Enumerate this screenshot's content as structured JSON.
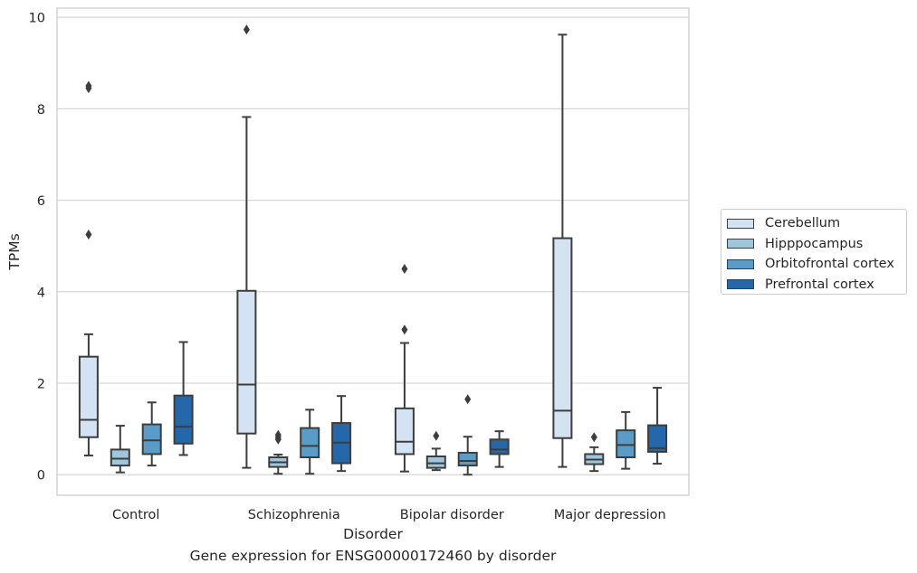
{
  "caption": "Gene expression for ENSG00000172460 by disorder",
  "chart_data": {
    "type": "boxplot",
    "xlabel": "Disorder",
    "ylabel": "TPMs",
    "ylim": [
      -0.45,
      10.2
    ],
    "yticks": [
      0,
      2,
      4,
      6,
      8,
      10
    ],
    "grid": true,
    "legend_position": "center-right, outside plot",
    "categories": [
      "Control",
      "Schizophrenia",
      "Bipolar disorder",
      "Major depression"
    ],
    "series": [
      {
        "name": "Cerebellum",
        "color": "#d4e3f3",
        "boxes": [
          {
            "whislo": 0.42,
            "q1": 0.82,
            "med": 1.2,
            "q3": 2.58,
            "whishi": 3.07,
            "fliers": [
              5.25,
              8.45,
              8.5
            ]
          },
          {
            "whislo": 0.15,
            "q1": 0.9,
            "med": 1.97,
            "q3": 4.02,
            "whishi": 7.82,
            "fliers": [
              9.73
            ]
          },
          {
            "whislo": 0.07,
            "q1": 0.45,
            "med": 0.72,
            "q3": 1.45,
            "whishi": 2.88,
            "fliers": [
              3.17,
              4.5
            ]
          },
          {
            "whislo": 0.17,
            "q1": 0.8,
            "med": 1.4,
            "q3": 5.17,
            "whishi": 9.62,
            "fliers": []
          }
        ]
      },
      {
        "name": "Hipppocampus",
        "color": "#9ec6dc",
        "boxes": [
          {
            "whislo": 0.05,
            "q1": 0.2,
            "med": 0.35,
            "q3": 0.55,
            "whishi": 1.07,
            "fliers": []
          },
          {
            "whislo": 0.02,
            "q1": 0.17,
            "med": 0.27,
            "q3": 0.38,
            "whishi": 0.44,
            "fliers": [
              0.77,
              0.82,
              0.87
            ]
          },
          {
            "whislo": 0.1,
            "q1": 0.15,
            "med": 0.25,
            "q3": 0.4,
            "whishi": 0.57,
            "fliers": [
              0.85
            ]
          },
          {
            "whislo": 0.08,
            "q1": 0.23,
            "med": 0.33,
            "q3": 0.45,
            "whishi": 0.6,
            "fliers": [
              0.82
            ]
          }
        ]
      },
      {
        "name": "Orbitofrontal cortex",
        "color": "#5b9bc8",
        "boxes": [
          {
            "whislo": 0.2,
            "q1": 0.45,
            "med": 0.75,
            "q3": 1.1,
            "whishi": 1.58,
            "fliers": []
          },
          {
            "whislo": 0.02,
            "q1": 0.38,
            "med": 0.63,
            "q3": 1.02,
            "whishi": 1.42,
            "fliers": []
          },
          {
            "whislo": 0.0,
            "q1": 0.2,
            "med": 0.3,
            "q3": 0.48,
            "whishi": 0.83,
            "fliers": [
              1.65
            ]
          },
          {
            "whislo": 0.13,
            "q1": 0.38,
            "med": 0.65,
            "q3": 0.97,
            "whishi": 1.37,
            "fliers": []
          }
        ]
      },
      {
        "name": "Prefrontal cortex",
        "color": "#2467aa",
        "boxes": [
          {
            "whislo": 0.43,
            "q1": 0.68,
            "med": 1.05,
            "q3": 1.73,
            "whishi": 2.9,
            "fliers": []
          },
          {
            "whislo": 0.08,
            "q1": 0.25,
            "med": 0.7,
            "q3": 1.13,
            "whishi": 1.72,
            "fliers": []
          },
          {
            "whislo": 0.17,
            "q1": 0.45,
            "med": 0.55,
            "q3": 0.77,
            "whishi": 0.95,
            "fliers": []
          },
          {
            "whislo": 0.24,
            "q1": 0.5,
            "med": 0.58,
            "q3": 1.08,
            "whishi": 1.9,
            "fliers": []
          }
        ]
      }
    ]
  }
}
